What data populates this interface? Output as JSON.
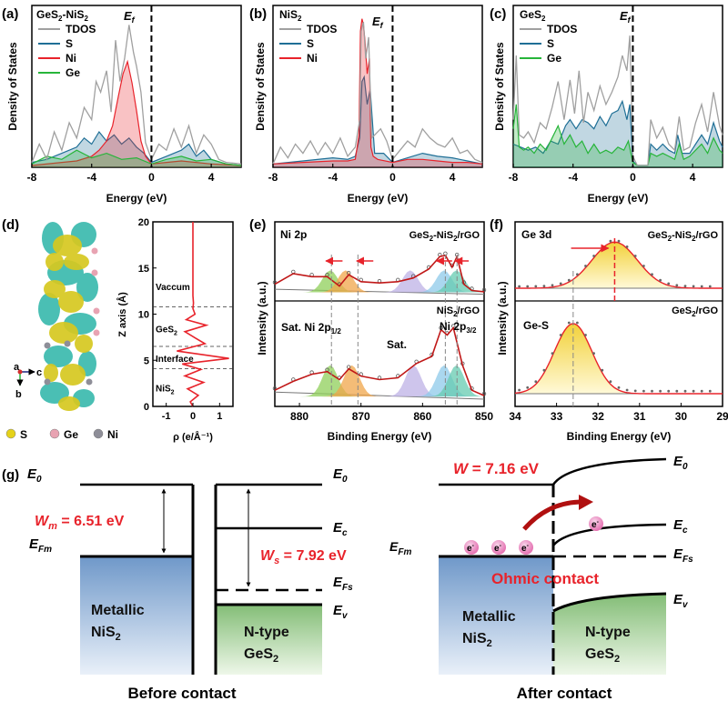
{
  "panel_labels": {
    "a": "(a)",
    "b": "(b)",
    "c": "(c)",
    "d": "(d)",
    "e": "(e)",
    "f": "(f)",
    "g": "(g)"
  },
  "common": {
    "dos_ylabel": "Density of States",
    "energy_xlabel": "Energy (eV)",
    "ef_label": "E",
    "ef_sub": "f",
    "intensity_label": "Intensity (a.u.)",
    "binding_xlabel": "Binding Energy (eV)"
  },
  "legend_atoms": [
    {
      "label": "S",
      "color": "#e5d21a"
    },
    {
      "label": "Ge",
      "color": "#e8a3b2"
    },
    {
      "label": "Ni",
      "color": "#8e8e98"
    }
  ],
  "structure_axes": {
    "a": "a",
    "b": "b",
    "c": "c"
  },
  "energy_diagram": {
    "before_title": "Before contact",
    "after_title": "After contact",
    "E0": "E",
    "E0_sub": "0",
    "Ec": "E",
    "Ec_sub": "c",
    "Ev": "E",
    "Ev_sub": "v",
    "EFm": "E",
    "EFm_sub": "Fm",
    "EFs": "E",
    "EFs_sub": "Fs",
    "Wm": "W",
    "Wm_sub": "m",
    "Wm_value": " = 6.51 eV",
    "Ws": "W",
    "Ws_sub": "s",
    "Ws_value": " = 7.92 eV",
    "W_after": "W",
    "W_after_value": " = 7.16 eV",
    "metal_name": "Metallic",
    "metal_formula": "NiS",
    "metal_formula_sub": "2",
    "semi_name": "N-type",
    "semi_formula": "GeS",
    "semi_formula_sub": "2",
    "ohmic": "Ohmic contact",
    "electron": "e",
    "electron_sup": "-"
  },
  "chart_data": [
    {
      "id": "a",
      "type": "area",
      "title": "GeS2-NiS2",
      "title_main": "GeS",
      "title_sub1": "2",
      "title_mid": "-NiS",
      "title_sub2": "2",
      "xlabel": "Energy (eV)",
      "ylabel": "Density of States",
      "xlim": [
        -8,
        6
      ],
      "ylim": [
        0,
        100
      ],
      "xticks": [
        -8,
        -4,
        0,
        4
      ],
      "ef": 0,
      "series": [
        {
          "name": "TDOS",
          "color": "#a0a0a0",
          "fill": false,
          "x": [
            -8,
            -7.5,
            -7,
            -6.5,
            -6,
            -5.5,
            -5,
            -4.5,
            -4,
            -3.7,
            -3.4,
            -3,
            -2.7,
            -2.4,
            -2.1,
            -1.8,
            -1.5,
            -1.2,
            -1,
            -0.7,
            -0.4,
            0,
            0.5,
            1,
            1.5,
            2,
            2.5,
            3,
            3.5,
            4,
            4.5,
            5,
            6
          ],
          "y": [
            2,
            14,
            4,
            22,
            10,
            28,
            18,
            38,
            30,
            55,
            48,
            62,
            35,
            82,
            55,
            70,
            92,
            74,
            65,
            48,
            15,
            4,
            14,
            10,
            24,
            12,
            26,
            8,
            20,
            14,
            4,
            2,
            1
          ]
        },
        {
          "name": "S",
          "color": "#1f6f96",
          "fill": true,
          "x": [
            -8,
            -7,
            -6,
            -5,
            -4.5,
            -4,
            -3.5,
            -3,
            -2.5,
            -2,
            -1.5,
            -1,
            -0.5,
            0,
            1,
            2,
            2.5,
            3,
            3.5,
            4,
            5,
            6
          ],
          "y": [
            2,
            4,
            8,
            12,
            18,
            14,
            22,
            16,
            20,
            14,
            18,
            12,
            8,
            2,
            6,
            10,
            14,
            6,
            10,
            4,
            1,
            0
          ]
        },
        {
          "name": "Ni",
          "color": "#e8232b",
          "fill": true,
          "x": [
            -8,
            -6,
            -5,
            -4,
            -3.5,
            -3,
            -2.6,
            -2.2,
            -1.9,
            -1.6,
            -1.3,
            -1,
            -0.7,
            -0.4,
            0,
            1,
            2,
            4,
            6
          ],
          "y": [
            0,
            2,
            3,
            6,
            10,
            16,
            26,
            46,
            60,
            68,
            54,
            36,
            16,
            6,
            1,
            2,
            3,
            1,
            0
          ]
        },
        {
          "name": "Ge",
          "color": "#27b53a",
          "fill": true,
          "x": [
            -8,
            -7,
            -6,
            -5,
            -4,
            -3,
            -2,
            -1,
            0,
            1,
            2,
            3,
            4,
            5,
            6
          ],
          "y": [
            1,
            6,
            4,
            10,
            5,
            8,
            4,
            5,
            1,
            4,
            6,
            3,
            4,
            1,
            0
          ]
        }
      ]
    },
    {
      "id": "b",
      "type": "area",
      "title": "NiS2",
      "title_main": "NiS",
      "title_sub1": "2",
      "xlabel": "Energy (eV)",
      "ylabel": "Density of States",
      "xlim": [
        -8,
        6
      ],
      "ylim": [
        0,
        100
      ],
      "xticks": [
        -8,
        -4,
        0,
        4
      ],
      "ef": 0,
      "series": [
        {
          "name": "TDOS",
          "color": "#a0a0a0",
          "fill": false,
          "x": [
            -8,
            -7.5,
            -7,
            -6.5,
            -6,
            -5.5,
            -5,
            -4.5,
            -4,
            -3.5,
            -3,
            -2.5,
            -2.2,
            -2.1,
            -1.95,
            -1.8,
            -1.6,
            -1.4,
            -1.2,
            -0.8,
            -0.4,
            0,
            0.5,
            1,
            1.5,
            2,
            2.5,
            3,
            3.5,
            4,
            4.5,
            5,
            5.5,
            6
          ],
          "y": [
            1,
            12,
            5,
            14,
            8,
            16,
            7,
            15,
            8,
            18,
            6,
            12,
            30,
            88,
            94,
            70,
            84,
            18,
            20,
            24,
            16,
            4,
            10,
            16,
            12,
            24,
            18,
            14,
            12,
            18,
            8,
            10,
            4,
            2
          ]
        },
        {
          "name": "S",
          "color": "#1f6f96",
          "fill": true,
          "x": [
            -8,
            -6,
            -4,
            -3,
            -2.5,
            -2.2,
            -2.05,
            -1.9,
            -1.7,
            -1.5,
            -1.2,
            -0.6,
            0,
            1,
            2,
            3,
            4,
            5,
            6
          ],
          "y": [
            1,
            3,
            5,
            4,
            6,
            18,
            55,
            58,
            40,
            50,
            8,
            8,
            2,
            5,
            8,
            6,
            5,
            3,
            1
          ]
        },
        {
          "name": "Ni",
          "color": "#e8232b",
          "fill": true,
          "x": [
            -8,
            -6,
            -4,
            -3,
            -2.5,
            -2.25,
            -2.15,
            -2.05,
            -1.95,
            -1.85,
            -1.7,
            -1.55,
            -1.45,
            -1.3,
            -1,
            0,
            1,
            2,
            3,
            4,
            5,
            6
          ],
          "y": [
            1,
            2,
            3,
            3,
            4,
            20,
            88,
            96,
            92,
            82,
            60,
            70,
            12,
            6,
            4,
            2,
            4,
            4,
            3,
            2,
            2,
            1
          ]
        }
      ]
    },
    {
      "id": "c",
      "type": "area",
      "title": "GeS2",
      "title_main": "GeS",
      "title_sub1": "2",
      "xlabel": "Energy (eV)",
      "ylabel": "Density of States",
      "xlim": [
        -8,
        6
      ],
      "ylim": [
        0,
        100
      ],
      "xticks": [
        -8,
        -4,
        0,
        4
      ],
      "ef": 0,
      "series": [
        {
          "name": "TDOS",
          "color": "#a0a0a0",
          "fill": false,
          "x": [
            -8,
            -7.8,
            -7.6,
            -7.3,
            -7,
            -6.6,
            -6.2,
            -5.8,
            -5.4,
            -5,
            -4.6,
            -4.2,
            -3.9,
            -3.6,
            -3.3,
            -3,
            -2.6,
            -2.2,
            -1.8,
            -1.4,
            -1,
            -0.7,
            -0.4,
            -0.2,
            0,
            0.3,
            0.8,
            1,
            1.2,
            1.6,
            2,
            2.4,
            2.8,
            3.1,
            3.4,
            3.8,
            4.2,
            4.6,
            5,
            5.4,
            5.8,
            6
          ],
          "y": [
            30,
            72,
            20,
            18,
            22,
            15,
            28,
            24,
            38,
            55,
            30,
            56,
            34,
            62,
            28,
            48,
            36,
            52,
            40,
            48,
            58,
            72,
            62,
            85,
            6,
            0,
            0,
            0,
            30,
            18,
            25,
            14,
            10,
            32,
            10,
            12,
            28,
            40,
            22,
            48,
            26,
            20
          ]
        },
        {
          "name": "S",
          "color": "#1f6f96",
          "fill": true,
          "x": [
            -8,
            -7.5,
            -7,
            -6.5,
            -6,
            -5.5,
            -5,
            -4.5,
            -4.2,
            -3.8,
            -3.4,
            -3,
            -2.6,
            -2.2,
            -1.8,
            -1.4,
            -1,
            -0.7,
            -0.4,
            -0.2,
            0,
            0.3,
            1,
            1.2,
            1.6,
            2,
            2.4,
            2.8,
            3,
            3.3,
            3.8,
            4.2,
            4.6,
            5,
            5.4,
            5.8,
            6
          ],
          "y": [
            14,
            12,
            10,
            12,
            8,
            16,
            14,
            26,
            30,
            24,
            30,
            28,
            24,
            32,
            26,
            34,
            36,
            42,
            30,
            40,
            3,
            0,
            0,
            14,
            10,
            14,
            10,
            8,
            20,
            8,
            8,
            14,
            20,
            14,
            28,
            16,
            12
          ]
        },
        {
          "name": "Ge",
          "color": "#27b53a",
          "fill": true,
          "x": [
            -8,
            -7.8,
            -7.6,
            -7.3,
            -7,
            -6.6,
            -6.2,
            -5.8,
            -5.4,
            -5,
            -4.6,
            -4.2,
            -3.8,
            -3.4,
            -3,
            -2.6,
            -2.2,
            -1.8,
            -1.4,
            -1,
            -0.6,
            -0.3,
            0,
            0.3,
            1,
            1.2,
            1.6,
            2,
            2.4,
            2.8,
            3.1,
            3.4,
            3.8,
            4.2,
            4.6,
            5,
            5.4,
            5.8,
            6
          ],
          "y": [
            24,
            40,
            12,
            10,
            12,
            8,
            14,
            10,
            18,
            26,
            14,
            20,
            12,
            16,
            8,
            14,
            8,
            10,
            8,
            12,
            10,
            16,
            2,
            0,
            0,
            8,
            6,
            8,
            6,
            4,
            14,
            4,
            6,
            10,
            14,
            8,
            18,
            10,
            8
          ]
        }
      ]
    },
    {
      "id": "d",
      "type": "line",
      "xlabel": "ρ (e/Å⁻¹)",
      "ylabel": "Z axis (Å)",
      "xlim": [
        -1.5,
        1.5
      ],
      "ylim": [
        0,
        20
      ],
      "xticks": [
        -1,
        0,
        1
      ],
      "yticks": [
        0,
        5,
        10,
        15,
        20
      ],
      "regions": [
        {
          "label": "Vaccum",
          "y": 13
        },
        {
          "label": "GeS",
          "label_sub": "2",
          "y": 8.4
        },
        {
          "label": "Interface",
          "y": 5.2
        },
        {
          "label": "NiS",
          "label_sub": "2",
          "y": 2
        }
      ],
      "boundaries": [
        10.8,
        6.5,
        4.1
      ],
      "series": [
        {
          "name": "rho",
          "color": "#e8232b",
          "x": [
            0,
            0,
            0.02,
            0,
            0.08,
            -0.25,
            0.5,
            -0.3,
            0.1,
            0.45,
            -0.6,
            1.35,
            -0.4,
            0.3,
            -0.3,
            0.4,
            -0.2,
            0.2,
            -0.1,
            0
          ],
          "y": [
            20,
            12,
            11.2,
            10.6,
            10,
            9.4,
            8.8,
            8.1,
            7.4,
            6.8,
            6,
            5.2,
            4.6,
            4,
            3.3,
            2.6,
            1.9,
            1.2,
            0.5,
            0
          ]
        }
      ]
    },
    {
      "id": "e",
      "type": "line",
      "xlabel": "Binding Energy (eV)",
      "ylabel": "Intensity (a.u.)",
      "xlim": [
        884,
        850
      ],
      "xticks": [
        880,
        870,
        860,
        850
      ],
      "top_left": "Ni 2p",
      "top_right": "GeS2-NiS2/rGO",
      "top_right_main": "GeS",
      "top_right_sub1": "2",
      "top_right_mid": "-NiS",
      "top_right_sub2": "2",
      "top_right_tail": "/rGO",
      "bottom_right": "NiS2/rGO",
      "bottom_right_main": "NiS",
      "bottom_right_sub1": "2",
      "bottom_right_tail": "/rGO",
      "peak_labels": {
        "sat1": "Sat. Ni 2p",
        "sat1_sub": "1/2",
        "sat2": "Sat.",
        "ni32": "Ni 2p",
        "ni32_sub": "3/2"
      },
      "series": [
        {
          "name": "fit_top",
          "color": "#c01818",
          "x": [
            884,
            881,
            878,
            875.5,
            873.5,
            872,
            870,
            867,
            864,
            861.5,
            859,
            857.2,
            856.3,
            855.2,
            854.4,
            853.3,
            852,
            850
          ],
          "y": [
            0.18,
            0.35,
            0.3,
            0.3,
            0.15,
            0.33,
            0.22,
            0.2,
            0.22,
            0.28,
            0.42,
            0.62,
            0.64,
            0.45,
            0.62,
            0.18,
            0.08,
            0.06
          ]
        },
        {
          "name": "fit_bottom",
          "color": "#c01818",
          "x": [
            884,
            881,
            878,
            875.5,
            873.5,
            872,
            870,
            867,
            864,
            861,
            858.5,
            857,
            856,
            855,
            853.5,
            852,
            850
          ],
          "y": [
            0.12,
            0.22,
            0.3,
            0.33,
            0.24,
            0.36,
            0.28,
            0.24,
            0.26,
            0.42,
            0.5,
            0.8,
            0.74,
            0.82,
            0.4,
            0.12,
            0.06
          ]
        }
      ]
    },
    {
      "id": "f",
      "type": "line",
      "xlabel": "Binding Energy (eV)",
      "ylabel": "Intensity (a.u.)",
      "xlim": [
        34,
        29
      ],
      "xticks": [
        34,
        33,
        32,
        31,
        30,
        29
      ],
      "top_left": "Ge 3d",
      "top_right": "GeS2-NiS2/rGO",
      "top_right_main": "GeS",
      "top_right_sub1": "2",
      "top_right_mid": "-NiS",
      "top_right_sub2": "2",
      "top_right_tail": "/rGO",
      "bottom_left": "Ge-S",
      "bottom_right": "GeS2/rGO",
      "bottom_right_main": "GeS",
      "bottom_right_sub1": "2",
      "bottom_right_tail": "/rGO",
      "peak_top": 31.6,
      "peak_bottom": 32.6,
      "series": [
        {
          "name": "fit_top",
          "color": "#e8232b",
          "center": 31.6,
          "sigma": 0.55,
          "height": 0.78
        },
        {
          "name": "fit_bottom",
          "color": "#e8232b",
          "center": 32.6,
          "sigma": 0.45,
          "height": 0.82
        }
      ]
    }
  ]
}
